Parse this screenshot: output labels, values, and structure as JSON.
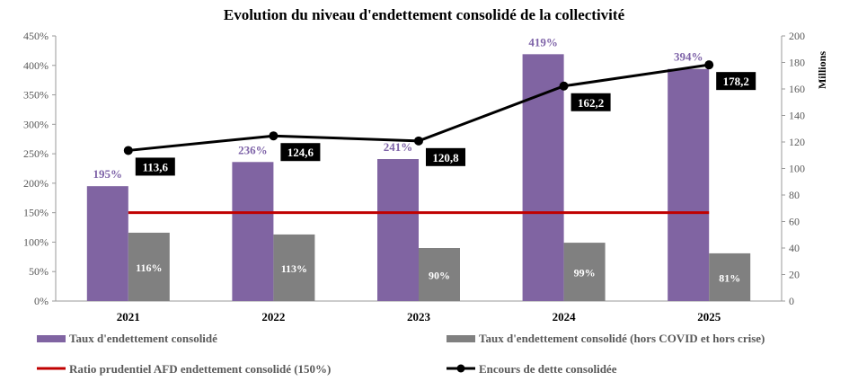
{
  "colors": {
    "purple": "#8064a2",
    "gray": "#808080",
    "red": "#c00000",
    "black": "#000000",
    "purple_label": "#7e63a8"
  },
  "chart_data": {
    "type": "bar",
    "title": "Evolution du niveau d'endettement consolidé de la collectivité",
    "categories": [
      "2021",
      "2022",
      "2023",
      "2024",
      "2025"
    ],
    "y_left": {
      "ylim": [
        0,
        450
      ],
      "ticks": [
        0,
        50,
        100,
        150,
        200,
        250,
        300,
        350,
        400,
        450
      ],
      "tick_labels": [
        "0%",
        "50%",
        "100%",
        "150%",
        "200%",
        "250%",
        "300%",
        "350%",
        "400%",
        "450%"
      ]
    },
    "y_right": {
      "label": "Millions",
      "ylim": [
        0,
        200
      ],
      "ticks": [
        0,
        20,
        40,
        60,
        80,
        100,
        120,
        140,
        160,
        180,
        200
      ],
      "tick_labels": [
        "0",
        "20",
        "40",
        "60",
        "80",
        "100",
        "120",
        "140",
        "160",
        "180",
        "200"
      ]
    },
    "grid": false,
    "legend_position": "bottom",
    "series": [
      {
        "name": "Taux d'endettement consolidé",
        "type": "bar",
        "axis": "left",
        "values": [
          195,
          236,
          241,
          419,
          394
        ],
        "data_labels": [
          "195%",
          "236%",
          "241%",
          "419%",
          "394%"
        ]
      },
      {
        "name": "Taux d'endettement consolidé (hors  COVID et hors crise)",
        "type": "bar",
        "axis": "left",
        "values": [
          116,
          113,
          90,
          99,
          81
        ],
        "data_labels": [
          "116%",
          "113%",
          "90%",
          "99%",
          "81%"
        ]
      },
      {
        "name": "Ratio prudentiel AFD endettement consolidé (150%)",
        "type": "line",
        "axis": "left",
        "values": [
          150,
          150,
          150,
          150,
          150
        ]
      },
      {
        "name": "Encours de dette consolidée",
        "type": "line",
        "axis": "right",
        "values": [
          113.6,
          124.6,
          120.8,
          162.2,
          178.2
        ],
        "data_labels": [
          "113,6",
          "124,6",
          "120,8",
          "162,2",
          "178,2"
        ]
      }
    ]
  }
}
